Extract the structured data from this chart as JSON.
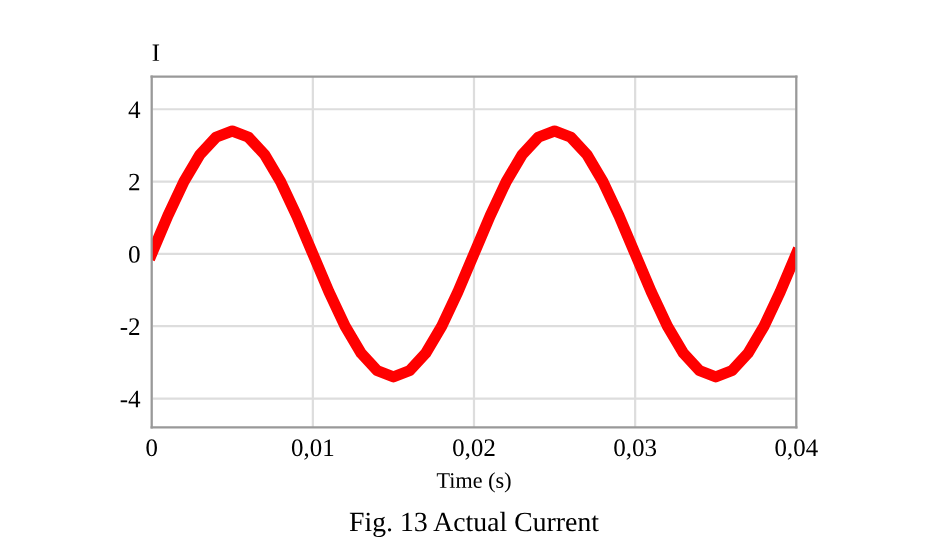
{
  "chart_data": {
    "type": "line",
    "xlabel": "Time (s)",
    "ylabel": "I",
    "annotations": [
      "Fig. 13 Actual Current"
    ],
    "x": [
      0,
      0.001,
      0.002,
      0.003,
      0.004,
      0.005,
      0.006,
      0.007,
      0.008,
      0.009,
      0.01,
      0.011,
      0.012,
      0.013,
      0.014,
      0.015,
      0.016,
      0.017,
      0.018,
      0.019,
      0.02,
      0.021,
      0.022,
      0.023,
      0.024,
      0.025,
      0.026,
      0.027,
      0.028,
      0.029,
      0.03,
      0.031,
      0.032,
      0.033,
      0.034,
      0.035,
      0.036,
      0.037,
      0.038,
      0.039,
      0.04
    ],
    "series": [
      {
        "color": "#ff0000",
        "values": [
          0,
          1.05,
          2.0,
          2.75,
          3.23,
          3.4,
          3.23,
          2.75,
          2.0,
          1.05,
          0,
          -1.05,
          -2.0,
          -2.75,
          -3.23,
          -3.4,
          -3.23,
          -2.75,
          -2.0,
          -1.05,
          0,
          1.05,
          2.0,
          2.75,
          3.23,
          3.4,
          3.23,
          2.75,
          2.0,
          1.05,
          0,
          -1.05,
          -2.0,
          -2.75,
          -3.23,
          -3.4,
          -3.23,
          -2.75,
          -2.0,
          -1.05,
          0
        ]
      }
    ],
    "xlim": [
      0,
      0.04
    ],
    "xticks": [
      {
        "value": 0,
        "label": "0"
      },
      {
        "value": 0.01,
        "label": "0,01"
      },
      {
        "value": 0.02,
        "label": "0,02"
      },
      {
        "value": 0.03,
        "label": "0,03"
      },
      {
        "value": 0.04,
        "label": "0,04"
      }
    ],
    "ylim": [
      -4.8,
      4.9
    ],
    "yticks": [
      -4,
      -2,
      0,
      2,
      4
    ],
    "grid": true,
    "legend": false,
    "marker": "none",
    "line_style": "solid"
  }
}
